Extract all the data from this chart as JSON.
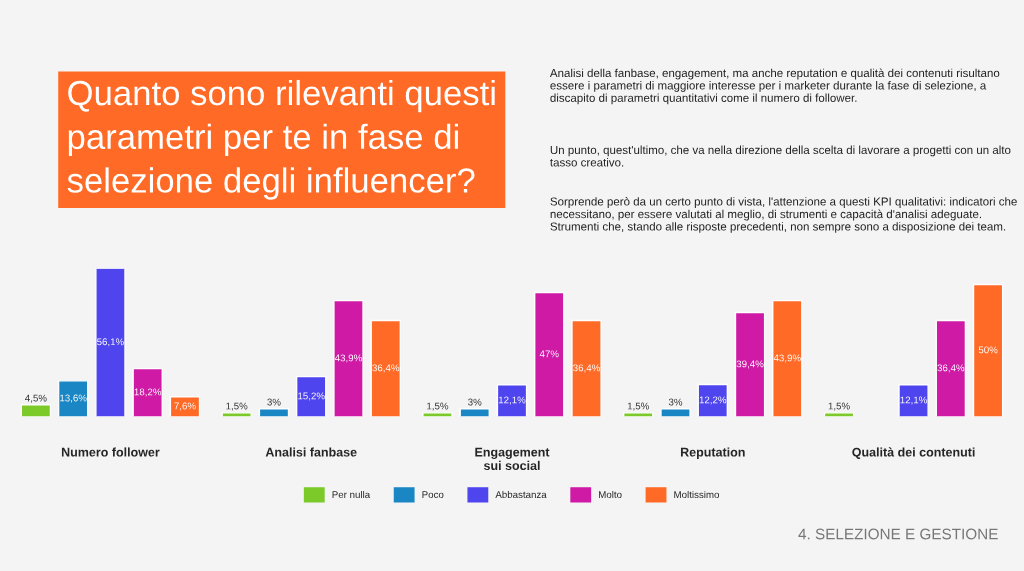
{
  "chart_data": {
    "type": "bar",
    "title": "Quanto sono rilevanti questi\nparametri per te in fase di\nselezione degli influencer?",
    "subtitle": "Analisi della fanbase, engagement, ma anche reputation e qualità dei contenuti risultano essere i parametri di maggiore interesse per i marketer durante la fase di selezione, a discapito di parametri quantitativi come il numero di follower.",
    "annotations": [
      "Un punto, quest'ultimo, che va nella direzione della scelta di lavorare a progetti con un alto tasso creativo.",
      "Sorprende però da un certo punto di vista, l'attenzione a questi KPI qualitativi: indicatori che necessitano, per essere valutati al meglio, di strumenti e capacità d'analisi adeguate. Strumenti che, stando alle risposte precedenti, non sempre sono a disposizione dei team.",
      "4. SELEZIONE E GESTIONE"
    ],
    "categories": [
      "Numero follower",
      "Analisi fanbase",
      "Engagement\nsui social",
      "Reputation",
      "Qualità dei contenuti"
    ],
    "series": [
      {
        "name": "Per nulla",
        "color": "#7cc92a",
        "values": [
          4.5,
          1.5,
          1.5,
          1.5,
          1.5
        ],
        "value_labels": [
          "4,5%",
          "1,5%",
          "1,5%",
          "1,5%",
          "1,5%"
        ]
      },
      {
        "name": "Poco",
        "color": "#1b86c4",
        "values": [
          13.6,
          3,
          3,
          3,
          null
        ],
        "value_labels": [
          "13,6%",
          "3%",
          "3%",
          "3%",
          null
        ]
      },
      {
        "name": "Abbastanza",
        "color": "#4f45ee",
        "values": [
          56.1,
          15.2,
          12.1,
          12.2,
          12.1
        ],
        "value_labels": [
          "56,1%",
          "15,2%",
          "12,1%",
          "12,2%",
          "12,1%"
        ]
      },
      {
        "name": "Molto",
        "color": "#cf1aa6",
        "values": [
          18.2,
          43.9,
          47,
          39.4,
          36.4
        ],
        "value_labels": [
          "18,2%",
          "43,9%",
          "47%",
          "39,4%",
          "36,4%"
        ]
      },
      {
        "name": "Moltissimo",
        "color": "#ff6a26",
        "values": [
          7.6,
          36.4,
          36.4,
          43.9,
          50
        ],
        "value_labels": [
          "7,6%",
          "36,4%",
          "36,4%",
          "43,9%",
          "50%"
        ]
      }
    ],
    "legend": "bottom"
  }
}
